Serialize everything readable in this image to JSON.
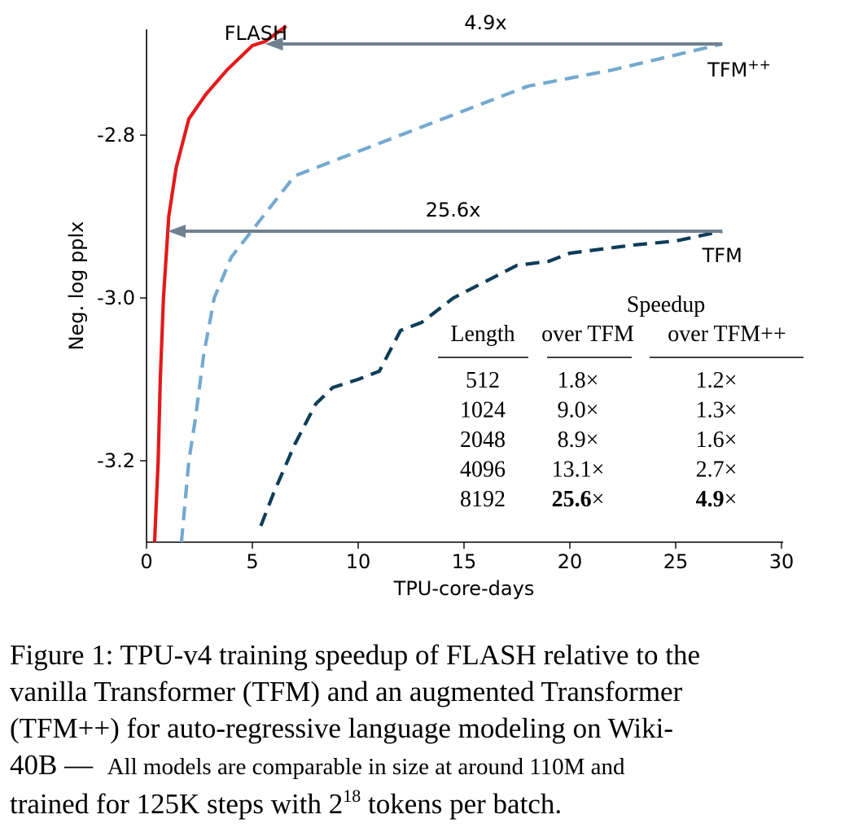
{
  "chart_data": {
    "type": "line",
    "xlabel": "TPU-core-days",
    "ylabel": "Neg. log pplx",
    "xlim": [
      0,
      30
    ],
    "ylim": [
      -3.3,
      -2.67
    ],
    "xticks": [
      0,
      5,
      10,
      15,
      20,
      25,
      30
    ],
    "yticks": [
      -2.8,
      -3.0,
      -3.2
    ],
    "ytick_labels": [
      "-2.8",
      "-3.0",
      "-3.2"
    ],
    "grid": false,
    "series": [
      {
        "name": "FLASH",
        "color": "#e31a1c",
        "style": "solid",
        "points": [
          [
            0.38,
            -3.3
          ],
          [
            0.55,
            -3.2
          ],
          [
            0.65,
            -3.1
          ],
          [
            0.8,
            -3.0
          ],
          [
            1.05,
            -2.9
          ],
          [
            1.4,
            -2.84
          ],
          [
            2.0,
            -2.78
          ],
          [
            2.8,
            -2.75
          ],
          [
            3.8,
            -2.72
          ],
          [
            5.0,
            -2.69
          ],
          [
            5.6,
            -2.685
          ],
          [
            6.6,
            -2.666
          ]
        ]
      },
      {
        "name": "TFM++",
        "color": "#74a9cf",
        "style": "dashed",
        "points": [
          [
            1.65,
            -3.3
          ],
          [
            2.0,
            -3.2
          ],
          [
            2.3,
            -3.15
          ],
          [
            2.7,
            -3.07
          ],
          [
            3.2,
            -3.0
          ],
          [
            4.0,
            -2.95
          ],
          [
            5.5,
            -2.9
          ],
          [
            7.0,
            -2.85
          ],
          [
            10.0,
            -2.82
          ],
          [
            14.0,
            -2.78
          ],
          [
            18.0,
            -2.74
          ],
          [
            22.0,
            -2.72
          ],
          [
            27.2,
            -2.688
          ]
        ]
      },
      {
        "name": "TFM",
        "color": "#0e3d59",
        "style": "dashed",
        "points": [
          [
            5.4,
            -3.28
          ],
          [
            6.0,
            -3.24
          ],
          [
            7.0,
            -3.18
          ],
          [
            8.0,
            -3.13
          ],
          [
            8.8,
            -3.11
          ],
          [
            10.0,
            -3.1
          ],
          [
            11.0,
            -3.09
          ],
          [
            12.0,
            -3.04
          ],
          [
            13.0,
            -3.03
          ],
          [
            14.5,
            -3.0
          ],
          [
            16.0,
            -2.98
          ],
          [
            17.5,
            -2.96
          ],
          [
            19.0,
            -2.955
          ],
          [
            20.0,
            -2.945
          ],
          [
            21.5,
            -2.94
          ],
          [
            23.0,
            -2.935
          ],
          [
            25.0,
            -2.93
          ],
          [
            27.2,
            -2.918
          ]
        ]
      }
    ],
    "annotations": [
      {
        "label": "4.9x",
        "from_x": 27.2,
        "to_x": 5.6,
        "y": -2.688,
        "color": "#708090"
      },
      {
        "label": "25.6x",
        "from_x": 27.2,
        "to_x": 1.0,
        "y": -2.918,
        "color": "#708090"
      }
    ],
    "series_labels": [
      {
        "text": "FLASH",
        "x": 6.5,
        "y": -2.675
      },
      {
        "text": "TFM",
        "sup": "++",
        "x": 28.0,
        "y": -2.72
      },
      {
        "text": "TFM",
        "x": 27.2,
        "y": -2.948
      }
    ],
    "table": {
      "header_top": "Speedup",
      "columns": [
        "Length",
        "over TFM",
        "over TFM++"
      ],
      "rows": [
        {
          "length": "512",
          "tfm": "1.8",
          "tfmpp": "1.2",
          "bold": false
        },
        {
          "length": "1024",
          "tfm": "9.0",
          "tfmpp": "1.3",
          "bold": false
        },
        {
          "length": "2048",
          "tfm": "8.9",
          "tfmpp": "1.6",
          "bold": false
        },
        {
          "length": "4096",
          "tfm": "13.1",
          "tfmpp": "2.7",
          "bold": false
        },
        {
          "length": "8192",
          "tfm": "25.6",
          "tfmpp": "4.9",
          "bold": true
        }
      ],
      "times_symbol": "×"
    }
  },
  "caption": {
    "line1": "Figure 1: TPU-v4 training speedup of FLASH relative to the",
    "line2": "vanilla Transformer (TFM) and an augmented Transformer",
    "line3": "(TFM++) for auto-regressive language modeling on Wiki-",
    "line4a": "40B —",
    "line4b": "All models are comparable in size at around 110M and",
    "line5a": "trained for 125K steps with 2",
    "line5sup": "18",
    "line5b": "tokens per batch."
  }
}
